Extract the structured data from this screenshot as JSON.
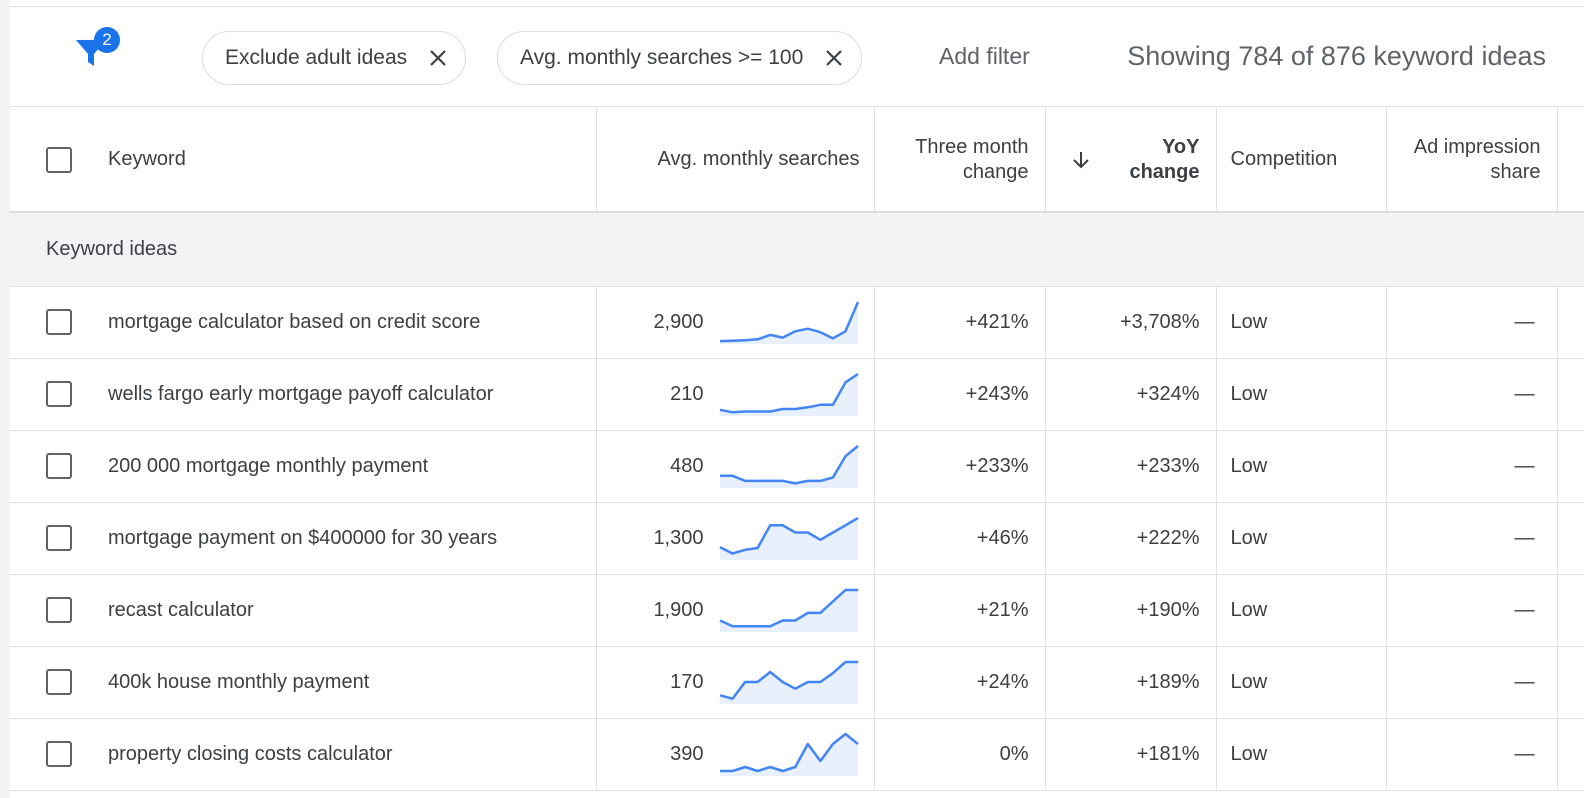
{
  "filters": {
    "badge_count": "2",
    "chips": [
      {
        "label": "Exclude adult ideas"
      },
      {
        "label": "Avg. monthly searches >= 100"
      }
    ],
    "add_filter_label": "Add filter",
    "showing_text": "Showing 784 of 876 keyword ideas"
  },
  "table": {
    "headers": {
      "keyword": "Keyword",
      "avg_monthly": "Avg. monthly searches",
      "three_month": [
        "Three month",
        "change"
      ],
      "yoy": [
        "YoY",
        "change"
      ],
      "competition": "Competition",
      "ad_impression": [
        "Ad impression",
        "share"
      ]
    },
    "group_label": "Keyword ideas",
    "rows": [
      {
        "keyword": "mortgage calculator based on credit score",
        "searches": "2,900",
        "three_month": "+421%",
        "yoy": "+3,708%",
        "competition": "Low",
        "ad_share": "—",
        "trend": [
          1,
          1.5,
          2,
          3,
          8,
          5,
          12,
          15,
          11,
          4,
          12,
          45
        ]
      },
      {
        "keyword": "wells fargo early mortgage payoff calculator",
        "searches": "210",
        "three_month": "+243%",
        "yoy": "+324%",
        "competition": "Low",
        "ad_share": "—",
        "trend": [
          5,
          2,
          3,
          3,
          3,
          6,
          6,
          8,
          11,
          11,
          38,
          48
        ]
      },
      {
        "keyword": "200 000 mortgage monthly payment",
        "searches": "480",
        "three_month": "+233%",
        "yoy": "+233%",
        "competition": "Low",
        "ad_share": "—",
        "trend": [
          12,
          12,
          6,
          6,
          6,
          6,
          3,
          6,
          6,
          10,
          35,
          47
        ]
      },
      {
        "keyword": "mortgage payment on $400000 for 30 years",
        "searches": "1,300",
        "three_month": "+46%",
        "yoy": "+222%",
        "competition": "Low",
        "ad_share": "—",
        "trend": [
          12,
          5,
          9,
          11,
          36,
          36,
          28,
          28,
          20,
          28,
          36,
          44
        ]
      },
      {
        "keyword": "recast calculator",
        "searches": "1,900",
        "three_month": "+21%",
        "yoy": "+190%",
        "competition": "Low",
        "ad_share": "—",
        "trend": [
          10,
          4,
          4,
          4,
          4,
          10,
          10,
          18,
          18,
          30,
          42,
          42
        ]
      },
      {
        "keyword": "400k house monthly payment",
        "searches": "170",
        "three_month": "+24%",
        "yoy": "+189%",
        "competition": "Low",
        "ad_share": "—",
        "trend": [
          6,
          3,
          18,
          18,
          27,
          18,
          12,
          18,
          18,
          26,
          36,
          36
        ]
      },
      {
        "keyword": "property closing costs calculator",
        "searches": "390",
        "three_month": "0%",
        "yoy": "+181%",
        "competition": "Low",
        "ad_share": "—",
        "trend": [
          3,
          3,
          7,
          3,
          7,
          3,
          7,
          30,
          13,
          30,
          40,
          30
        ]
      }
    ]
  },
  "colors": {
    "accent": "#1a73e8",
    "spark_line": "#4285f4",
    "spark_fill": "#e8f0fe"
  }
}
